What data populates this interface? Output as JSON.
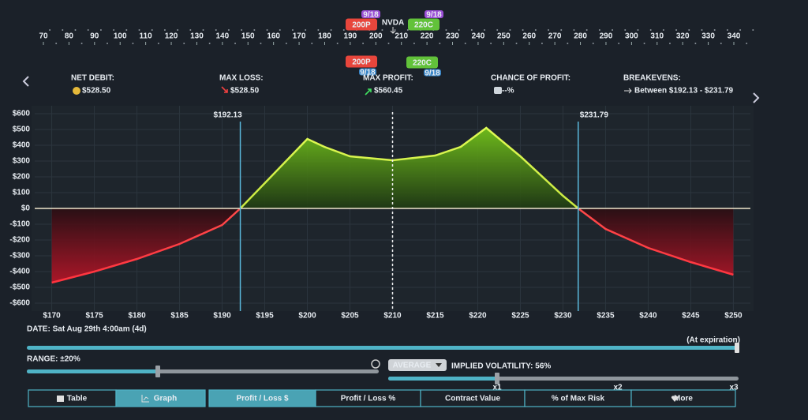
{
  "strike_ruler": {
    "ticks": [
      70,
      80,
      90,
      100,
      110,
      120,
      130,
      140,
      150,
      160,
      170,
      180,
      190,
      200,
      210,
      220,
      230,
      240,
      250,
      260,
      270,
      280,
      290,
      300,
      310,
      320,
      330,
      340
    ]
  },
  "legs_top": {
    "put": {
      "label": "200P",
      "expiry": "9/18"
    },
    "symbol": "NVDA",
    "call": {
      "label": "220C",
      "expiry": "9/18"
    }
  },
  "legs_bottom": {
    "put": {
      "label": "200P",
      "expiry": "9/18"
    },
    "call": {
      "label": "220C",
      "expiry": "9/18"
    }
  },
  "stats": [
    {
      "label": "NET DEBIT:",
      "value": "$528.50"
    },
    {
      "label": "MAX LOSS:",
      "value": "$528.50"
    },
    {
      "label": "MAX PROFIT:",
      "value": "$560.45"
    },
    {
      "label": "CHANCE OF PROFIT:",
      "value": "--%"
    },
    {
      "label": "BREAKEVENS:",
      "value": "Between $192.13 - $231.79"
    }
  ],
  "chart_data": {
    "type": "area",
    "x": [
      170,
      175,
      180,
      185,
      190,
      192.13,
      195,
      200,
      202,
      205,
      210,
      215,
      218,
      221,
      225,
      230,
      231.79,
      235,
      240,
      245,
      250
    ],
    "values": [
      -470,
      -400,
      -320,
      -225,
      -105,
      0,
      160,
      440,
      390,
      330,
      305,
      335,
      390,
      510,
      330,
      80,
      0,
      -130,
      -250,
      -340,
      -420
    ],
    "xlim": [
      168,
      252
    ],
    "ylim": [
      -650,
      650
    ],
    "xticks": [
      {
        "value": 170,
        "label": "$170"
      },
      {
        "value": 175,
        "label": "$175"
      },
      {
        "value": 180,
        "label": "$180"
      },
      {
        "value": 185,
        "label": "$185"
      },
      {
        "value": 190,
        "label": "$190"
      },
      {
        "value": 195,
        "label": "$195"
      },
      {
        "value": 200,
        "label": "$200"
      },
      {
        "value": 205,
        "label": "$205"
      },
      {
        "value": 210,
        "label": "$210"
      },
      {
        "value": 215,
        "label": "$215"
      },
      {
        "value": 220,
        "label": "$220"
      },
      {
        "value": 225,
        "label": "$225"
      },
      {
        "value": 230,
        "label": "$230"
      },
      {
        "value": 235,
        "label": "$235"
      },
      {
        "value": 240,
        "label": "$240"
      },
      {
        "value": 245,
        "label": "$245"
      },
      {
        "value": 250,
        "label": "$250"
      }
    ],
    "yticks": [
      {
        "value": 600,
        "label": "$600"
      },
      {
        "value": 500,
        "label": "$500"
      },
      {
        "value": 400,
        "label": "$400"
      },
      {
        "value": 300,
        "label": "$300"
      },
      {
        "value": 200,
        "label": "$200"
      },
      {
        "value": 100,
        "label": "$100"
      },
      {
        "value": 0,
        "label": "$0"
      },
      {
        "value": -100,
        "label": "-$100"
      },
      {
        "value": -200,
        "label": "-$200"
      },
      {
        "value": -300,
        "label": "-$300"
      },
      {
        "value": -400,
        "label": "-$400"
      },
      {
        "value": -500,
        "label": "-$500"
      },
      {
        "value": -600,
        "label": "-$600"
      }
    ],
    "annotations": [
      {
        "x": 192.13,
        "label": "$192.13"
      },
      {
        "x": 231.79,
        "label": "$231.79"
      }
    ],
    "price_line": 210,
    "grid": true
  },
  "controls": {
    "date_label": "DATE: Sat Aug 29th 4:00am (4d)",
    "date_end_label": "(At expiration)",
    "range_label": "RANGE: ±20%",
    "iv_mode": "AVERAGE",
    "iv_label": "IMPLIED VOLATILITY: 56%",
    "iv_marks": [
      "x1",
      "x2",
      "x3"
    ]
  },
  "tabs": [
    {
      "label": "Table",
      "active": false
    },
    {
      "label": "Graph",
      "active": true
    },
    {
      "label": "Profit / Loss $",
      "active": true
    },
    {
      "label": "Profit / Loss %",
      "active": false
    },
    {
      "label": "Contract Value",
      "active": false
    },
    {
      "label": "% of Max Risk",
      "active": false
    },
    {
      "label": "More",
      "active": false
    }
  ]
}
